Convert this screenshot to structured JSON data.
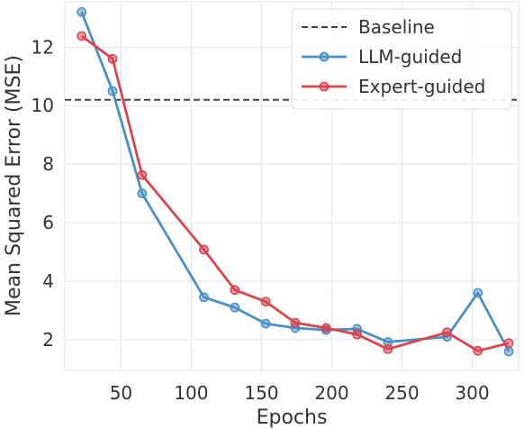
{
  "chart_data": {
    "type": "line",
    "xlabel": "Epochs",
    "ylabel": "Mean Squared Error (MSE)",
    "xlim": [
      10,
      333
    ],
    "ylim": [
      0.95,
      13.55
    ],
    "xticks": [
      50,
      100,
      150,
      200,
      250,
      300
    ],
    "yticks": [
      2,
      4,
      6,
      8,
      10,
      12
    ],
    "grid": true,
    "legend_position": "top-right",
    "baseline": {
      "name": "Baseline",
      "value": 10.2,
      "color": "#444444",
      "style": "dashed"
    },
    "series": [
      {
        "name": "LLM-guided",
        "color": "#4a90c2",
        "x": [
          22,
          44,
          65,
          109,
          131,
          153,
          174,
          196,
          218,
          240,
          282,
          304,
          326
        ],
        "y": [
          13.2,
          10.5,
          7.0,
          3.45,
          3.1,
          2.55,
          2.4,
          2.33,
          2.37,
          1.92,
          2.1,
          3.6,
          1.6
        ]
      },
      {
        "name": "Expert-guided",
        "color": "#d9444f",
        "x": [
          22,
          44,
          65,
          109,
          131,
          153,
          174,
          196,
          218,
          240,
          282,
          304,
          326
        ],
        "y": [
          12.38,
          11.6,
          7.63,
          5.08,
          3.7,
          3.3,
          2.58,
          2.4,
          2.18,
          1.68,
          2.25,
          1.62,
          1.88
        ]
      }
    ]
  }
}
